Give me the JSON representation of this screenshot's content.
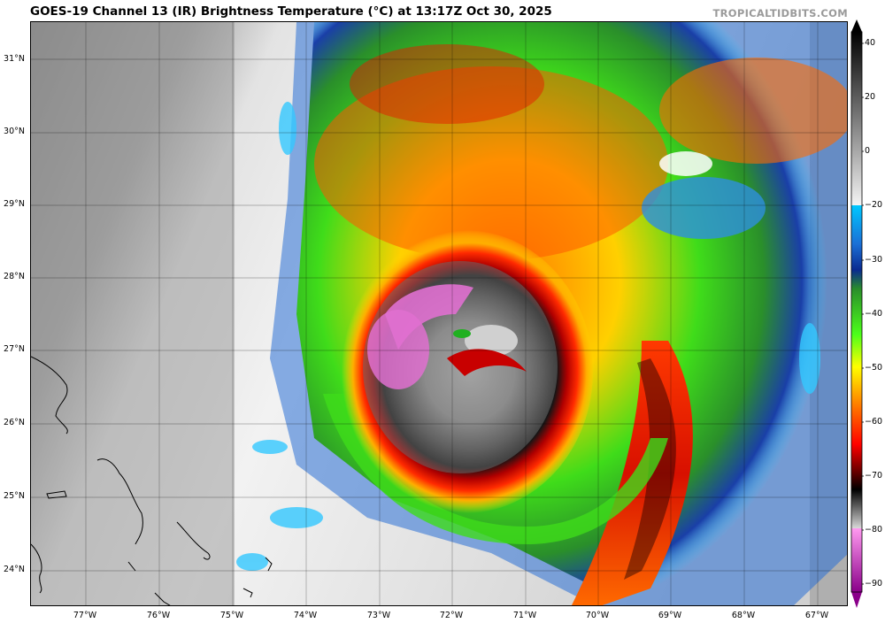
{
  "title": "GOES-19 Channel 13 (IR) Brightness Temperature (°C) at 13:17Z Oct 30, 2025",
  "credit": "TROPICALTIDBITS.COM",
  "lat_labels": [
    "31°N",
    "30°N",
    "29°N",
    "28°N",
    "27°N",
    "26°N",
    "25°N",
    "24°N"
  ],
  "lon_labels": [
    "77°W",
    "76°W",
    "75°W",
    "74°W",
    "73°W",
    "72°W",
    "71°W",
    "70°W",
    "69°W",
    "68°W",
    "67°W"
  ],
  "colorbar": {
    "ticks": [
      "40",
      "20",
      "0",
      "−20",
      "−30",
      "−40",
      "−50",
      "−60",
      "−70",
      "−80",
      "−90"
    ],
    "unit": "°C"
  }
}
